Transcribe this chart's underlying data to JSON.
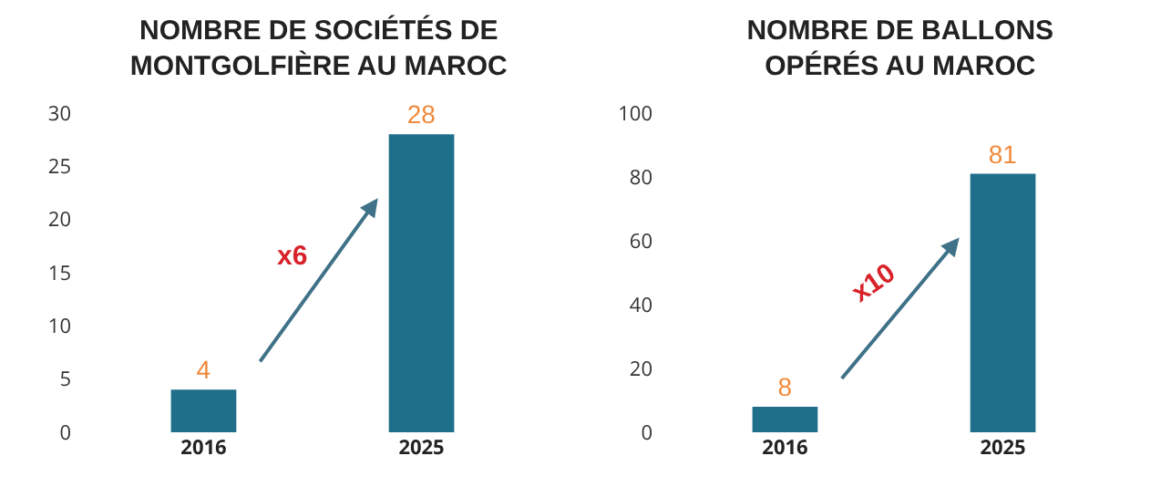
{
  "chart_data": [
    {
      "type": "bar",
      "title": "NOMBRE DE SOCIÉTÉS DE\nMONTGOLFIÈRE AU MAROC",
      "categories": [
        "2016",
        "2025"
      ],
      "values": [
        4,
        28
      ],
      "color": "#1f6f8b",
      "ylim": [
        0,
        30
      ],
      "yticks": [
        0,
        5,
        10,
        15,
        20,
        25,
        30
      ],
      "data_labels": true,
      "annotations": [
        "x6"
      ]
    },
    {
      "type": "bar",
      "title": "NOMBRE DE BALLONS\nOPÉRÉS AU MAROC",
      "categories": [
        "2016",
        "2025"
      ],
      "values": [
        8,
        81
      ],
      "color": "#1f6f8b",
      "ylim": [
        0,
        100
      ],
      "yticks": [
        0,
        20,
        40,
        60,
        80,
        100
      ],
      "data_labels": true,
      "annotations": [
        "x10"
      ]
    }
  ]
}
